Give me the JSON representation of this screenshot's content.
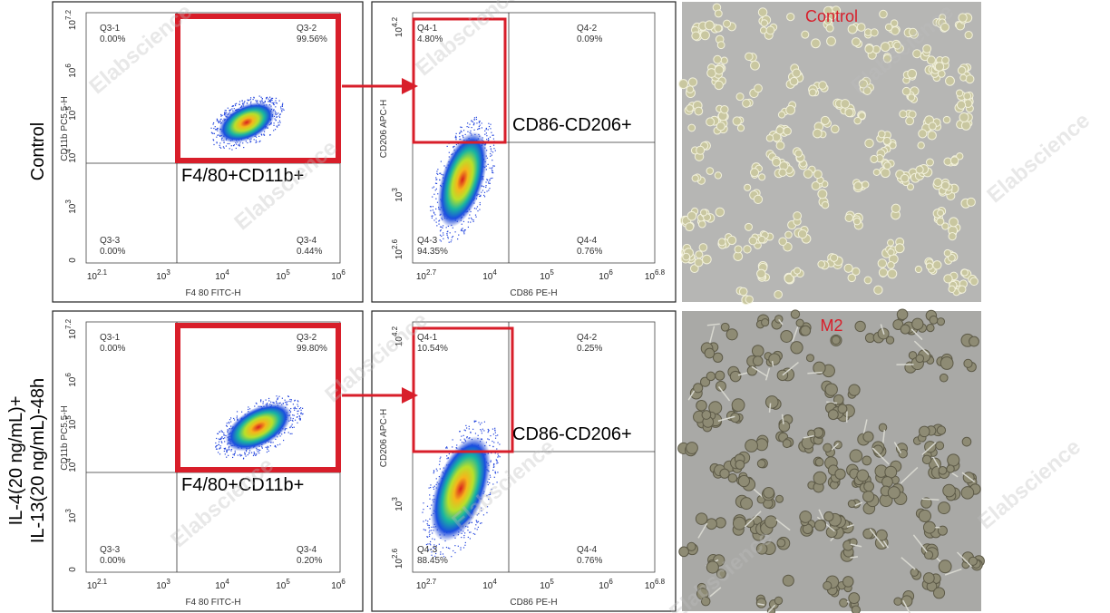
{
  "watermark": "Elabscience",
  "rows": [
    {
      "label": [
        "Control"
      ],
      "gating": {
        "quadrants": [
          {
            "name": "Q3-1",
            "pct": "0.00%"
          },
          {
            "name": "Q3-2",
            "pct": "99.56%"
          },
          {
            "name": "Q3-3",
            "pct": "0.00%"
          },
          {
            "name": "Q3-4",
            "pct": "0.44%"
          }
        ],
        "gate_label": "F4/80+CD11b+",
        "x_axis_label": "F4 80 FITC-H",
        "y_axis_label": "CD11b PC5.5-H",
        "x_ticks": [
          {
            "base": "10",
            "exp": "2.1"
          },
          {
            "base": "10",
            "exp": "3"
          },
          {
            "base": "10",
            "exp": "4"
          },
          {
            "base": "10",
            "exp": "5"
          },
          {
            "base": "10",
            "exp": "6"
          }
        ],
        "y_ticks": [
          {
            "base": "0"
          },
          {
            "base": "10",
            "exp": "3"
          },
          {
            "base": "10",
            "exp": "4"
          },
          {
            "base": "10",
            "exp": "5"
          },
          {
            "base": "10",
            "exp": "6"
          },
          {
            "base": "10",
            "exp": "7.2"
          }
        ]
      },
      "polarization": {
        "quadrants": [
          {
            "name": "Q4-1",
            "pct": "4.80%"
          },
          {
            "name": "Q4-2",
            "pct": "0.09%"
          },
          {
            "name": "Q4-3",
            "pct": "94.35%"
          },
          {
            "name": "Q4-4",
            "pct": "0.76%"
          }
        ],
        "gate_label": "CD86-CD206+",
        "x_axis_label": "CD86 PE-H",
        "y_axis_label": "CD206 APC-H",
        "x_ticks": [
          {
            "base": "10",
            "exp": "2.7"
          },
          {
            "base": "10",
            "exp": "4"
          },
          {
            "base": "10",
            "exp": "5"
          },
          {
            "base": "10",
            "exp": "6"
          },
          {
            "base": "10",
            "exp": "6.8"
          }
        ],
        "y_ticks": [
          {
            "base": "10",
            "exp": "2.6"
          },
          {
            "base": "10",
            "exp": "3"
          },
          {
            "base": "10",
            "exp": "4.2"
          }
        ]
      },
      "image_label": "Control"
    },
    {
      "label": [
        "IL-4(20 ng/mL)+",
        "IL-13(20 ng/mL)-48h"
      ],
      "gating": {
        "quadrants": [
          {
            "name": "Q3-1",
            "pct": "0.00%"
          },
          {
            "name": "Q3-2",
            "pct": "99.80%"
          },
          {
            "name": "Q3-3",
            "pct": "0.00%"
          },
          {
            "name": "Q3-4",
            "pct": "0.20%"
          }
        ],
        "gate_label": "F4/80+CD11b+",
        "x_axis_label": "F4 80 FITC-H",
        "y_axis_label": "CD11b PC5.5-H",
        "x_ticks": [
          {
            "base": "10",
            "exp": "2.1"
          },
          {
            "base": "10",
            "exp": "3"
          },
          {
            "base": "10",
            "exp": "4"
          },
          {
            "base": "10",
            "exp": "5"
          },
          {
            "base": "10",
            "exp": "6"
          }
        ],
        "y_ticks": [
          {
            "base": "0"
          },
          {
            "base": "10",
            "exp": "3"
          },
          {
            "base": "10",
            "exp": "4"
          },
          {
            "base": "10",
            "exp": "5"
          },
          {
            "base": "10",
            "exp": "6"
          },
          {
            "base": "10",
            "exp": "7.2"
          }
        ]
      },
      "polarization": {
        "quadrants": [
          {
            "name": "Q4-1",
            "pct": "10.54%"
          },
          {
            "name": "Q4-2",
            "pct": "0.25%"
          },
          {
            "name": "Q4-3",
            "pct": "88.45%"
          },
          {
            "name": "Q4-4",
            "pct": "0.76%"
          }
        ],
        "gate_label": "CD86-CD206+",
        "x_axis_label": "CD86 PE-H",
        "y_axis_label": "CD206 APC-H",
        "x_ticks": [
          {
            "base": "10",
            "exp": "2.7"
          },
          {
            "base": "10",
            "exp": "4"
          },
          {
            "base": "10",
            "exp": "5"
          },
          {
            "base": "10",
            "exp": "6"
          },
          {
            "base": "10",
            "exp": "6.8"
          }
        ],
        "y_ticks": [
          {
            "base": "10",
            "exp": "2.6"
          },
          {
            "base": "10",
            "exp": "3"
          },
          {
            "base": "10",
            "exp": "4.2"
          }
        ]
      },
      "image_label": "M2"
    }
  ]
}
